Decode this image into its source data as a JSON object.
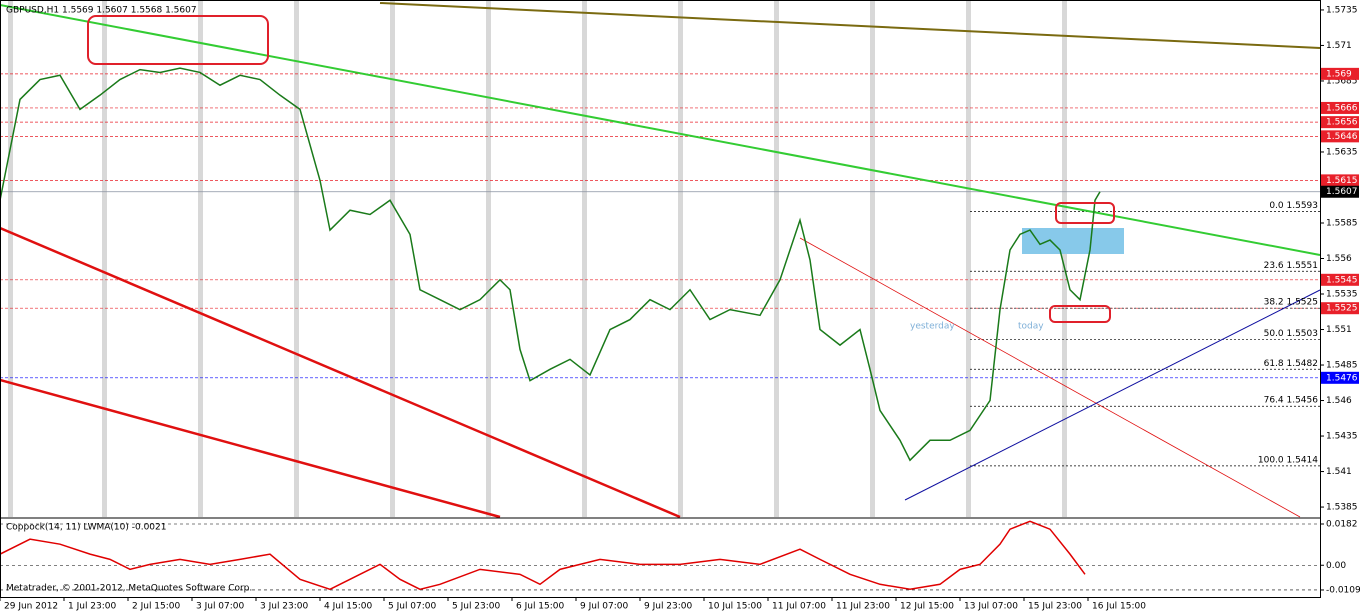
{
  "header": "GBPUSD,H1  1.5569 1.5607 1.5568 1.5607",
  "footer": "Metatrader, © 2001-2012, MetaQuotes Software Corp.",
  "annotations": [
    "yesterday",
    "today"
  ],
  "chart_data": [
    {
      "type": "line",
      "color": "#1a7a1a",
      "x": [
        0,
        5,
        10,
        15,
        20,
        25,
        30,
        35,
        40,
        45,
        50,
        55,
        60,
        65,
        70,
        75,
        80,
        82.5,
        87.5,
        92.5,
        97.5,
        102.5,
        105,
        110,
        115,
        120,
        125,
        127.5,
        130,
        132.5,
        137.5,
        142.5,
        147.5,
        152.5,
        157.5,
        162.5,
        167.5,
        172.5,
        177.5,
        182.5,
        190,
        195,
        200,
        202.5,
        205,
        210,
        215,
        217.5,
        220,
        225,
        227.5,
        232.5,
        237.5,
        242.5,
        247.5,
        250,
        252.5,
        255,
        257.5,
        260,
        262.5,
        265,
        267.5,
        270,
        272.5,
        273.75,
        275
      ],
      "values": [
        1.5601,
        1.5672,
        1.5686,
        1.5689,
        1.5665,
        1.5675,
        1.5686,
        1.5693,
        1.5691,
        1.5694,
        1.5691,
        1.5682,
        1.5689,
        1.5686,
        1.5675,
        1.5665,
        1.5615,
        1.558,
        1.5594,
        1.5591,
        1.5601,
        1.5577,
        1.5538,
        1.5531,
        1.5524,
        1.5531,
        1.5545,
        1.5538,
        1.5496,
        1.5474,
        1.5482,
        1.5489,
        1.5478,
        1.551,
        1.5517,
        1.5531,
        1.5524,
        1.5538,
        1.5517,
        1.5524,
        1.552,
        1.5545,
        1.5587,
        1.5559,
        1.551,
        1.5499,
        1.551,
        1.5482,
        1.5453,
        1.5432,
        1.5418,
        1.5432,
        1.5432,
        1.5439,
        1.546,
        1.5524,
        1.5566,
        1.5577,
        1.558,
        1.557,
        1.5573,
        1.5566,
        1.5538,
        1.5531,
        1.5566,
        1.5601,
        1.5607
      ],
      "xlim": [
        0,
        330
      ],
      "ylim": [
        1.5378,
        1.5742
      ],
      "yticks": [
        1.5735,
        1.571,
        1.5685,
        1.5635,
        1.5585,
        1.556,
        1.5535,
        1.551,
        1.5485,
        1.546,
        1.5435,
        1.541,
        1.5385
      ],
      "xticks": [
        {
          "value": 0,
          "label": "29 Jun 2012"
        },
        {
          "value": 16,
          "label": "1 Jul 23:00"
        },
        {
          "value": 32,
          "label": "2 Jul 15:00"
        },
        {
          "value": 48,
          "label": "3 Jul 07:00"
        },
        {
          "value": 64,
          "label": "3 Jul 23:00"
        },
        {
          "value": 80,
          "label": "4 Jul 15:00"
        },
        {
          "value": 96,
          "label": "5 Jul 07:00"
        },
        {
          "value": 112,
          "label": "5 Jul 23:00"
        },
        {
          "value": 128,
          "label": "6 Jul 15:00"
        },
        {
          "value": 144,
          "label": "9 Jul 07:00"
        },
        {
          "value": 160,
          "label": "9 Jul 23:00"
        },
        {
          "value": 176,
          "label": "10 Jul 15:00"
        },
        {
          "value": 192,
          "label": "11 Jul 07:00"
        },
        {
          "value": 208,
          "label": "11 Jul 23:00"
        },
        {
          "value": 224,
          "label": "12 Jul 15:00"
        },
        {
          "value": 240,
          "label": "13 Jul 07:00"
        },
        {
          "value": 256,
          "label": "15 Jul 23:00"
        },
        {
          "value": 272,
          "label": "16 Jul 15:00"
        }
      ],
      "levels": [
        {
          "value": 1.569,
          "color": "#e8202a"
        },
        {
          "value": 1.5666,
          "color": "#e8202a"
        },
        {
          "value": 1.5656,
          "color": "#e8202a"
        },
        {
          "value": 1.5646,
          "color": "#e8202a"
        },
        {
          "value": 1.5615,
          "color": "#e8202a"
        },
        {
          "value": 1.5607,
          "color": "#000000"
        },
        {
          "value": 1.5545,
          "color": "#e8202a"
        },
        {
          "value": 1.5525,
          "color": "#e8202a"
        },
        {
          "value": 1.5476,
          "color": "#0000ff"
        }
      ],
      "fib": [
        {
          "value": 1.5593,
          "label": "0.0 1.5593"
        },
        {
          "value": 1.5551,
          "label": "23.6 1.5551"
        },
        {
          "value": 1.5525,
          "label": "38.2  1.5525"
        },
        {
          "value": 1.5503,
          "label": "50.0 1.5503"
        },
        {
          "value": 1.5482,
          "label": "61.8 1.5482"
        },
        {
          "value": 1.5456,
          "label": "76.4 1.5456"
        },
        {
          "value": 1.5414,
          "label": "100.0 1.5414"
        }
      ]
    },
    {
      "type": "line",
      "title": "Coppock(14, 11) LWMA(10) -0.0021",
      "color": "#e00000",
      "x": [
        0,
        7.5,
        15,
        22.5,
        27.5,
        32.5,
        37.5,
        45,
        52.5,
        60,
        67.5,
        75,
        82.5,
        90,
        95,
        100,
        105,
        110,
        120,
        130,
        135,
        140,
        150,
        160,
        170,
        180,
        190,
        200,
        205,
        212.5,
        220,
        227.5,
        235,
        240,
        245,
        250,
        252.5,
        257.5,
        262.5,
        267.5,
        271.25
      ],
      "values": [
        0.0049,
        0.0115,
        0.0093,
        0.0049,
        0.0026,
        -0.0018,
        0.0004,
        0.0026,
        0.0004,
        0.0026,
        0.0049,
        -0.0062,
        -0.0106,
        -0.004,
        0.0004,
        -0.0062,
        -0.0106,
        -0.0084,
        -0.0018,
        -0.004,
        -0.0084,
        -0.0018,
        0.0026,
        0.0004,
        0.0004,
        0.0026,
        0.0004,
        0.0071,
        0.0026,
        -0.004,
        -0.0084,
        -0.0106,
        -0.0084,
        -0.0018,
        0.0004,
        0.0093,
        0.0159,
        0.0194,
        0.0159,
        0.0049,
        -0.004
      ],
      "xlim": [
        0,
        330
      ],
      "ylim": [
        -0.014,
        0.0204
      ],
      "yticks": [
        0.0182,
        {
          "value": 0,
          "label": "0.00"
        },
        -0.0109
      ]
    }
  ]
}
